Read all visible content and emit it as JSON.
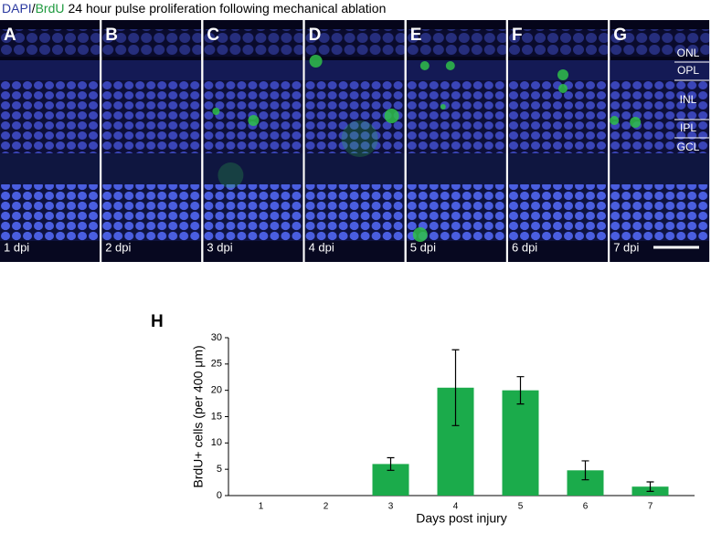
{
  "header": {
    "stain1": "DAPI",
    "separator": "/",
    "stain2": "BrdU",
    "title": "24 hour pulse proliferation following mechanical ablation"
  },
  "panels": [
    {
      "letter": "A",
      "label": "1 dpi"
    },
    {
      "letter": "B",
      "label": "2 dpi"
    },
    {
      "letter": "C",
      "label": "3 dpi"
    },
    {
      "letter": "D",
      "label": "4 dpi"
    },
    {
      "letter": "E",
      "label": "5 dpi"
    },
    {
      "letter": "F",
      "label": "6 dpi"
    },
    {
      "letter": "G",
      "label": "7 dpi"
    }
  ],
  "layers": [
    "ONL",
    "OPL",
    "INL",
    "IPL",
    "GCL"
  ],
  "chart_data": {
    "type": "bar",
    "panel_label": "H",
    "y_label": "BrdU+ cells (per 400 μm)",
    "x_label": "Days post injury",
    "categories": [
      "1",
      "2",
      "3",
      "4",
      "5",
      "6",
      "7"
    ],
    "values": [
      0,
      0,
      6,
      20.5,
      20,
      4.8,
      1.7
    ],
    "errors": [
      0,
      0,
      1.2,
      7.2,
      2.6,
      1.8,
      0.9
    ],
    "color": "#1bab4b",
    "ylim": [
      0,
      30
    ],
    "yticks": [
      0,
      5,
      10,
      15,
      20,
      25,
      30
    ]
  }
}
